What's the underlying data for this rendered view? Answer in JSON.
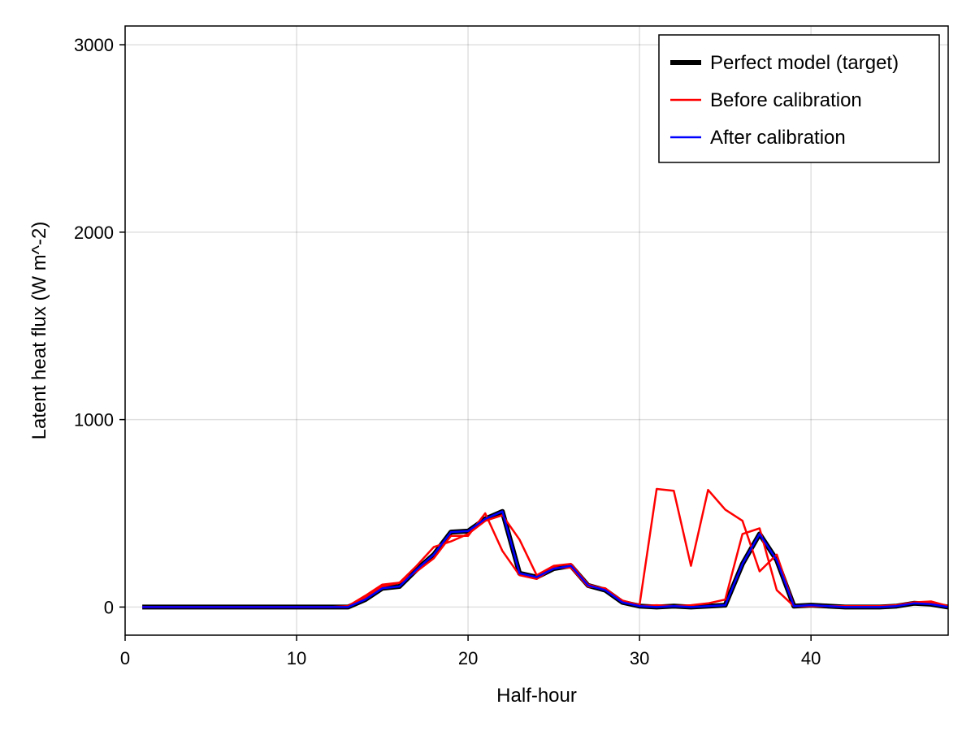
{
  "chart_data": {
    "type": "line",
    "title": "",
    "xlabel": "Half-hour",
    "ylabel": "Latent heat flux (W m^-2)",
    "xlim": [
      0,
      48
    ],
    "ylim": [
      -150,
      3100
    ],
    "xticks": [
      0,
      10,
      20,
      30,
      40
    ],
    "yticks": [
      0,
      1000,
      2000,
      3000
    ],
    "grid": true,
    "legend_position": "top-right",
    "x": [
      1,
      2,
      3,
      4,
      5,
      6,
      7,
      8,
      9,
      10,
      11,
      12,
      13,
      14,
      15,
      16,
      17,
      18,
      19,
      20,
      21,
      22,
      23,
      24,
      25,
      26,
      27,
      28,
      29,
      30,
      31,
      32,
      33,
      34,
      35,
      36,
      37,
      38,
      39,
      40,
      41,
      42,
      43,
      44,
      45,
      46,
      47,
      48
    ],
    "series": [
      {
        "name": "Perfect model (target)",
        "color": "#000000",
        "values": [
          0,
          0,
          0,
          0,
          0,
          0,
          0,
          0,
          0,
          0,
          0,
          0,
          0,
          40,
          100,
          110,
          200,
          280,
          400,
          405,
          470,
          510,
          180,
          160,
          205,
          220,
          115,
          90,
          25,
          5,
          0,
          5,
          0,
          5,
          10,
          230,
          390,
          250,
          5,
          10,
          5,
          0,
          0,
          0,
          5,
          20,
          15,
          0
        ]
      },
      {
        "name": "Before calibration",
        "color": "#ff0000",
        "values": [
          0,
          0,
          0,
          0,
          0,
          0,
          0,
          0,
          0,
          0,
          0,
          0,
          0,
          50,
          110,
          130,
          220,
          320,
          350,
          390,
          460,
          490,
          360,
          170,
          220,
          230,
          120,
          95,
          35,
          10,
          630,
          620,
          220,
          625,
          520,
          460,
          190,
          280,
          5,
          10,
          5,
          5,
          5,
          5,
          10,
          25,
          30,
          5
        ]
      },
      {
        "name": "Before calibration",
        "color": "#ff0000",
        "values": [
          0,
          0,
          0,
          0,
          0,
          0,
          0,
          0,
          0,
          0,
          0,
          0,
          5,
          60,
          120,
          130,
          190,
          260,
          380,
          380,
          500,
          300,
          170,
          150,
          210,
          210,
          110,
          100,
          30,
          5,
          10,
          5,
          10,
          20,
          40,
          390,
          420,
          90,
          5,
          5,
          5,
          0,
          0,
          0,
          5,
          25,
          25,
          0
        ]
      },
      {
        "name": "After calibration",
        "color": "#0000ff",
        "values": [
          0,
          0,
          0,
          0,
          0,
          0,
          0,
          0,
          0,
          0,
          0,
          0,
          0,
          40,
          100,
          110,
          200,
          280,
          400,
          405,
          470,
          510,
          180,
          160,
          205,
          220,
          115,
          90,
          25,
          5,
          0,
          5,
          0,
          5,
          10,
          230,
          390,
          250,
          5,
          10,
          5,
          0,
          0,
          0,
          5,
          20,
          15,
          0
        ]
      }
    ],
    "legend": [
      {
        "label": "Perfect model (target)",
        "color": "#000000",
        "width": 6
      },
      {
        "label": "Before calibration",
        "color": "#ff0000",
        "width": 2.5
      },
      {
        "label": "After calibration",
        "color": "#0000ff",
        "width": 2.5
      }
    ]
  }
}
